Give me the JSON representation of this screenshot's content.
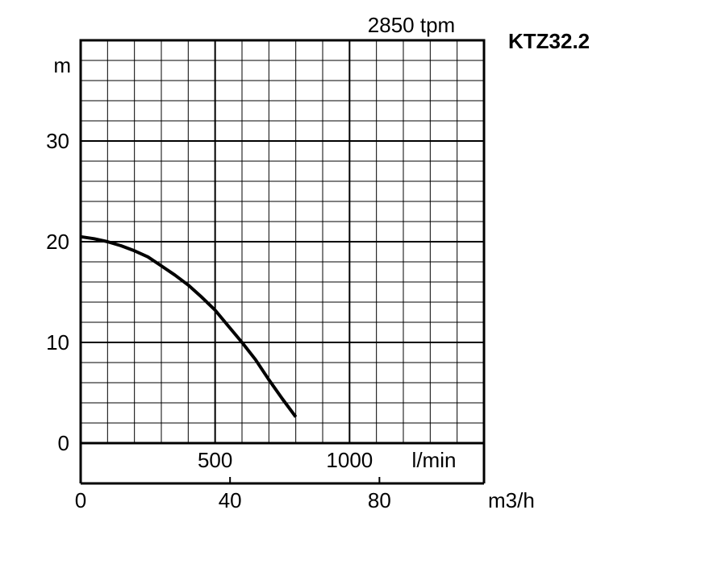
{
  "chart_data": {
    "type": "line",
    "title": "KTZ32.2",
    "subtitle": "2850 tpm",
    "ylabel": "m",
    "xlabel_lmin": "l/min",
    "xlabel_m3h": "m3/h",
    "ylim": [
      0,
      40
    ],
    "xlim_lmin": [
      0,
      1500
    ],
    "xlim_m3h": [
      0,
      108
    ],
    "y_ticks": [
      {
        "value": 0,
        "label": "0"
      },
      {
        "value": 10,
        "label": "10"
      },
      {
        "value": 20,
        "label": "20"
      },
      {
        "value": 30,
        "label": "30"
      }
    ],
    "x_ticks_lmin": [
      {
        "value": 500,
        "label": "500"
      },
      {
        "value": 1000,
        "label": "1000"
      }
    ],
    "x_ticks_m3h": [
      {
        "value": 0,
        "label": "0"
      },
      {
        "value": 40,
        "label": "40"
      },
      {
        "value": 80,
        "label": "80"
      }
    ],
    "grid": true,
    "series": [
      {
        "x": [
          0,
          50,
          100,
          150,
          200,
          250,
          300,
          350,
          400,
          450,
          500,
          550,
          600,
          650,
          700,
          750,
          800
        ],
        "y": [
          20.5,
          20.3,
          20.0,
          19.6,
          19.1,
          18.5,
          17.6,
          16.7,
          15.7,
          14.5,
          13.2,
          11.6,
          10.0,
          8.3,
          6.3,
          4.4,
          2.6
        ]
      }
    ]
  }
}
